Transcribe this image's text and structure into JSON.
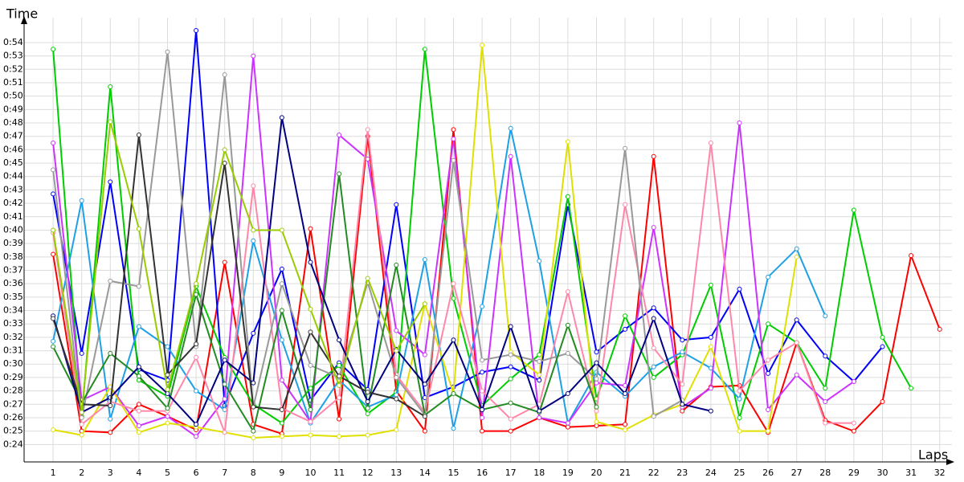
{
  "chart_data": {
    "type": "line",
    "y_label": "Time",
    "x_label": "Laps",
    "x": [
      1,
      2,
      3,
      4,
      5,
      6,
      7,
      8,
      9,
      10,
      11,
      12,
      13,
      14,
      15,
      16,
      17,
      18,
      19,
      20,
      21,
      22,
      23,
      24,
      25,
      26,
      27,
      28,
      29,
      30,
      31,
      32
    ],
    "xlim": [
      0,
      32.4
    ],
    "xticks": [
      1,
      2,
      3,
      4,
      5,
      6,
      7,
      8,
      9,
      10,
      11,
      12,
      13,
      14,
      15,
      16,
      17,
      18,
      19,
      20,
      21,
      22,
      23,
      24,
      25,
      26,
      27,
      28,
      29,
      30,
      31,
      32
    ],
    "ylim": [
      22.7,
      55.7
    ],
    "yticks": [
      {
        "value": 24,
        "label": "0:24"
      },
      {
        "value": 25,
        "label": "0:25"
      },
      {
        "value": 26,
        "label": "0:26"
      },
      {
        "value": 27,
        "label": "0:27"
      },
      {
        "value": 28,
        "label": "0:28"
      },
      {
        "value": 29,
        "label": "0:29"
      },
      {
        "value": 30,
        "label": "0:30"
      },
      {
        "value": 31,
        "label": "0:31"
      },
      {
        "value": 32,
        "label": "0:32"
      },
      {
        "value": 33,
        "label": "0:33"
      },
      {
        "value": 34,
        "label": "0:34"
      },
      {
        "value": 35,
        "label": "0:35"
      },
      {
        "value": 36,
        "label": "0:36"
      },
      {
        "value": 37,
        "label": "0:37"
      },
      {
        "value": 38,
        "label": "0:38"
      },
      {
        "value": 39,
        "label": "0:39"
      },
      {
        "value": 40,
        "label": "0:40"
      },
      {
        "value": 41,
        "label": "0:41"
      },
      {
        "value": 42,
        "label": "0:42"
      },
      {
        "value": 43,
        "label": "0:43"
      },
      {
        "value": 44,
        "label": "0:44"
      },
      {
        "value": 45,
        "label": "0:45"
      },
      {
        "value": 46,
        "label": "0:46"
      },
      {
        "value": 47,
        "label": "0:47"
      },
      {
        "value": 48,
        "label": "0:48"
      },
      {
        "value": 49,
        "label": "0:49"
      },
      {
        "value": 50,
        "label": "0:50"
      },
      {
        "value": 51,
        "label": "0:51"
      },
      {
        "value": 52,
        "label": "0:52"
      },
      {
        "value": 53,
        "label": "0:53"
      },
      {
        "value": 54,
        "label": "0:54"
      }
    ],
    "grid": true,
    "series": [
      {
        "color": "#ff0000",
        "values": [
          38.2,
          25.0,
          24.9,
          27.0,
          26.1,
          25.1,
          37.6,
          25.5,
          24.8,
          40.1,
          25.9,
          47.0,
          28.0,
          25.0,
          47.5,
          25.0,
          25.0,
          26.0,
          25.3,
          25.4,
          25.5,
          45.5,
          26.5,
          28.3,
          28.4,
          24.9,
          31.6,
          25.8,
          25.0,
          27.2,
          38.1,
          32.6
        ]
      },
      {
        "color": "#0000ff",
        "values": [
          42.7,
          30.8,
          43.6,
          29.6,
          28.8,
          54.9,
          26.9,
          32.3,
          37.1,
          27.3,
          30.1,
          28.1,
          41.9,
          27.5,
          28.3,
          29.4,
          29.8,
          28.8,
          41.9,
          30.9,
          32.6,
          34.2,
          31.8,
          32.0,
          35.6,
          29.3,
          33.3,
          30.6,
          28.7,
          31.3,
          null,
          null
        ]
      },
      {
        "color": "#00cc00",
        "values": [
          53.5,
          26.1,
          50.7,
          28.8,
          27.6,
          35.8,
          30.5,
          27.0,
          25.6,
          28.2,
          29.9,
          26.3,
          27.9,
          53.5,
          34.9,
          26.9,
          28.9,
          30.7,
          42.5,
          27.4,
          33.6,
          29.0,
          30.7,
          35.9,
          26.0,
          33.0,
          31.6,
          28.2,
          41.5,
          32.0,
          28.2,
          null
        ]
      },
      {
        "color": "#1ea0e6",
        "values": [
          31.7,
          42.2,
          25.9,
          32.8,
          31.3,
          28.0,
          26.6,
          39.2,
          31.8,
          25.6,
          28.8,
          26.8,
          27.7,
          37.8,
          25.2,
          34.3,
          47.6,
          37.7,
          25.6,
          29.4,
          27.6,
          29.8,
          30.9,
          29.7,
          27.4,
          36.5,
          38.6,
          33.6,
          null,
          null,
          null,
          null
        ]
      },
      {
        "color": "#cc33ff",
        "values": [
          46.5,
          27.3,
          28.3,
          25.4,
          26.1,
          24.6,
          27.4,
          53.0,
          28.8,
          25.7,
          47.1,
          45.3,
          32.5,
          30.7,
          46.8,
          26.0,
          45.5,
          26.0,
          25.6,
          28.6,
          28.4,
          40.2,
          26.8,
          28.2,
          48.0,
          26.6,
          29.2,
          27.2,
          28.7,
          null,
          null,
          null
        ]
      },
      {
        "color": "#e0e000",
        "values": [
          25.1,
          24.7,
          28.3,
          24.9,
          25.6,
          25.3,
          24.9,
          24.5,
          24.6,
          24.7,
          24.6,
          24.7,
          25.1,
          34.5,
          27.8,
          53.8,
          30.9,
          29.2,
          46.6,
          25.7,
          25.1,
          26.2,
          27.0,
          31.3,
          25.0,
          25.0,
          38.0,
          null,
          null,
          null,
          null,
          null
        ]
      },
      {
        "color": "#ff88aa",
        "values": [
          39.8,
          25.5,
          27.2,
          26.5,
          26.5,
          30.5,
          24.9,
          43.3,
          26.7,
          25.7,
          27.5,
          47.5,
          29.2,
          26.4,
          36.0,
          28.0,
          25.9,
          27.0,
          35.4,
          26.5,
          41.9,
          31.2,
          28.5,
          46.5,
          28.0,
          30.3,
          31.6,
          25.6,
          25.6,
          null,
          null,
          null
        ]
      },
      {
        "color": "#999999",
        "values": [
          44.5,
          26.0,
          36.2,
          35.8,
          53.3,
          31.3,
          51.6,
          26.8,
          36.0,
          29.9,
          29.0,
          36.1,
          29.0,
          26.2,
          45.2,
          30.3,
          30.7,
          30.2,
          30.8,
          28.9,
          46.1,
          26.1,
          27.3,
          null,
          null,
          null,
          null,
          null,
          null,
          null,
          null,
          null
        ]
      },
      {
        "color": "#228b22",
        "values": [
          31.3,
          27.1,
          30.8,
          29.1,
          26.7,
          35.2,
          28.5,
          25.0,
          34.0,
          26.6,
          44.2,
          26.7,
          37.4,
          26.2,
          27.8,
          26.6,
          27.1,
          26.4,
          32.9,
          26.8,
          null,
          null,
          null,
          null,
          null,
          null,
          null,
          null,
          null,
          null,
          null,
          null
        ]
      },
      {
        "color": "#000080",
        "values": [
          33.6,
          26.4,
          27.5,
          29.8,
          27.8,
          25.5,
          30.3,
          28.6,
          48.4,
          37.6,
          31.8,
          27.2,
          31.1,
          28.5,
          31.8,
          26.6,
          32.8,
          26.5,
          27.8,
          30.1,
          27.8,
          33.4,
          27.0,
          26.5,
          null,
          null,
          null,
          null,
          null,
          null,
          null,
          null
        ]
      },
      {
        "color": "#333333",
        "values": [
          33.4,
          27.0,
          26.9,
          47.1,
          29.2,
          31.5,
          45.0,
          26.8,
          26.6,
          32.4,
          29.1,
          27.9,
          27.4,
          26.1,
          null,
          null,
          null,
          null,
          null,
          null,
          null,
          null,
          null,
          null,
          null,
          null,
          null,
          null,
          null,
          null,
          null,
          null
        ]
      },
      {
        "color": "#99cc00",
        "values": [
          40.0,
          26.4,
          48.1,
          40.1,
          28.1,
          36.0,
          46.0,
          40.0,
          40.0,
          34.1,
          28.4,
          36.4,
          31.0,
          34.5,
          null,
          null,
          null,
          null,
          null,
          null,
          null,
          null,
          null,
          null,
          null,
          null,
          null,
          null,
          null,
          null,
          null,
          null
        ]
      }
    ]
  }
}
